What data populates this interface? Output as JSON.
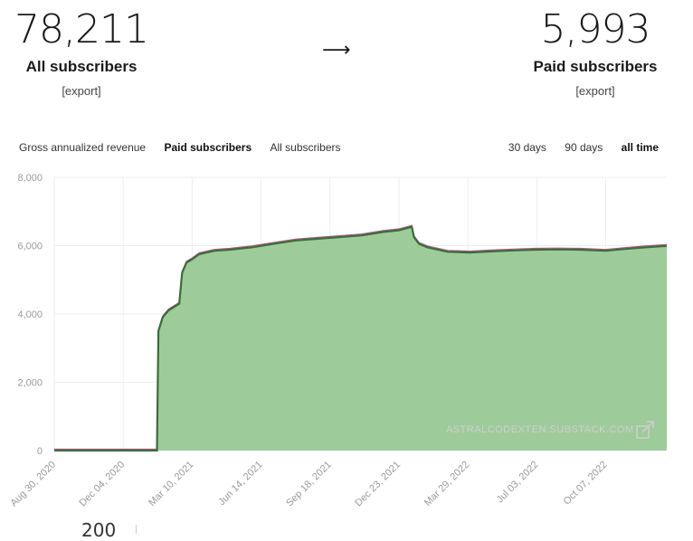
{
  "stats": {
    "all": {
      "value": "78,211",
      "label": "All subscribers",
      "export": "[export]"
    },
    "arrow": "⟶",
    "paid": {
      "value": "5,993",
      "label": "Paid subscribers",
      "export": "[export]"
    }
  },
  "metric_tabs": [
    {
      "label": "Gross annualized revenue",
      "active": false
    },
    {
      "label": "Paid subscribers",
      "active": true
    },
    {
      "label": "All subscribers",
      "active": false
    }
  ],
  "range_tabs": [
    {
      "label": "30 days",
      "active": false
    },
    {
      "label": "90 days",
      "active": false
    },
    {
      "label": "all time",
      "active": true
    }
  ],
  "watermark": "ASTRALCODEXTEN.SUBSTACK.COM",
  "below_chart_stub": "200",
  "colors": {
    "fill": "#9ecb9a",
    "line": "#3e6b3c",
    "line2": "#b05a8c",
    "grid": "#eeeeee"
  },
  "chart_data": {
    "type": "area",
    "series_name": "Paid subscribers",
    "ylim": [
      0,
      8000
    ],
    "yticks": [
      "0",
      "2,000",
      "4,000",
      "6,000",
      "8,000"
    ],
    "xticks": [
      "Aug 30, 2020",
      "Dec 04, 2020",
      "Mar 10, 2021",
      "Jun 14, 2021",
      "Sep 18, 2021",
      "Dec 23, 2021",
      "Mar 29, 2022",
      "Jul 03, 2022",
      "Oct 07, 2022"
    ],
    "x_start": "2020-08-30",
    "x_end": "2022-12-31",
    "points": [
      [
        "2020-08-30",
        0
      ],
      [
        "2021-01-20",
        0
      ],
      [
        "2021-01-22",
        3500
      ],
      [
        "2021-01-28",
        3900
      ],
      [
        "2021-02-05",
        4100
      ],
      [
        "2021-02-20",
        4300
      ],
      [
        "2021-02-24",
        5200
      ],
      [
        "2021-03-02",
        5500
      ],
      [
        "2021-03-10",
        5600
      ],
      [
        "2021-03-20",
        5750
      ],
      [
        "2021-04-10",
        5850
      ],
      [
        "2021-05-01",
        5880
      ],
      [
        "2021-06-01",
        5950
      ],
      [
        "2021-07-01",
        6050
      ],
      [
        "2021-08-01",
        6150
      ],
      [
        "2021-09-01",
        6200
      ],
      [
        "2021-10-01",
        6250
      ],
      [
        "2021-11-01",
        6300
      ],
      [
        "2021-12-01",
        6400
      ],
      [
        "2021-12-23",
        6450
      ],
      [
        "2022-01-10",
        6550
      ],
      [
        "2022-01-13",
        6250
      ],
      [
        "2022-01-20",
        6050
      ],
      [
        "2022-02-01",
        5950
      ],
      [
        "2022-03-01",
        5820
      ],
      [
        "2022-04-01",
        5800
      ],
      [
        "2022-05-01",
        5830
      ],
      [
        "2022-06-01",
        5860
      ],
      [
        "2022-07-01",
        5880
      ],
      [
        "2022-08-01",
        5890
      ],
      [
        "2022-09-01",
        5880
      ],
      [
        "2022-10-07",
        5850
      ],
      [
        "2022-11-01",
        5900
      ],
      [
        "2022-12-01",
        5950
      ],
      [
        "2022-12-31",
        5993
      ]
    ]
  }
}
